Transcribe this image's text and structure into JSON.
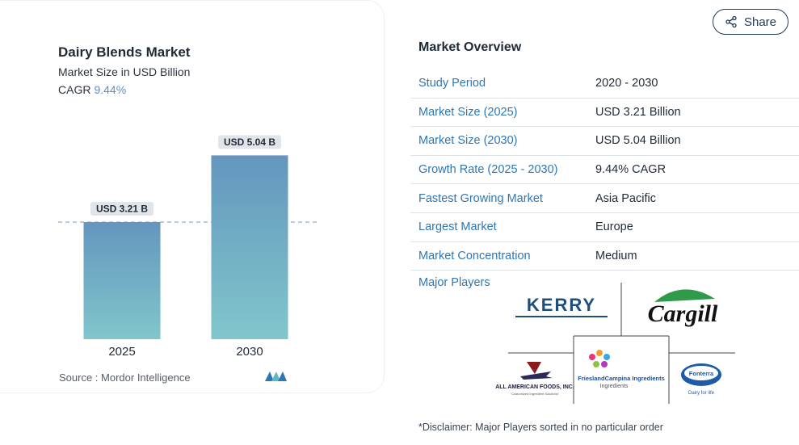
{
  "chart": {
    "title": "Dairy Blends Market",
    "subtitle": "Market Size in USD Billion",
    "cagr_label": "CAGR",
    "cagr_value": "9.44%",
    "source": "Source :  Mordor Intelligence"
  },
  "chart_data": {
    "type": "bar",
    "title": "Dairy Blends Market",
    "subtitle": "Market Size in USD Billion",
    "categories": [
      "2025",
      "2030"
    ],
    "values": [
      3.21,
      5.04
    ],
    "data_labels": [
      "USD 3.21 B",
      "USD 5.04 B"
    ],
    "ylim": [
      0,
      6.2
    ],
    "reference_line": 3.21,
    "grid": false,
    "colors": {
      "bar_top": "#6496be",
      "bar_bottom": "#80c6cb",
      "label_bg": "#e1e5e9",
      "ref_line": "#6f9ac0"
    }
  },
  "header": {
    "share_label": "Share"
  },
  "overview": {
    "title": "Market Overview",
    "rows": [
      {
        "key": "Study Period",
        "value": "2020 - 2030"
      },
      {
        "key": "Market Size (2025)",
        "value": "USD 3.21 Billion"
      },
      {
        "key": "Market Size (2030)",
        "value": "USD 5.04 Billion"
      },
      {
        "key": "Growth Rate (2025 - 2030)",
        "value": "9.44% CAGR"
      },
      {
        "key": "Fastest Growing Market",
        "value": "Asia Pacific"
      },
      {
        "key": "Largest Market",
        "value": "Europe"
      },
      {
        "key": "Market Concentration",
        "value": "Medium"
      }
    ],
    "major_players_label": "Major Players",
    "players": [
      "KERRY",
      "Cargill",
      "ALL AMERICAN FOODS, INC.",
      "FrieslandCampina Ingredients",
      "Fonterra"
    ],
    "player_taglines": {
      "all_american": "\"Customized Ingredient Solutions\"",
      "friesland": "Ingredients",
      "fonterra": "Dairy for life"
    },
    "disclaimer": "*Disclaimer: Major Players sorted in no particular order"
  }
}
